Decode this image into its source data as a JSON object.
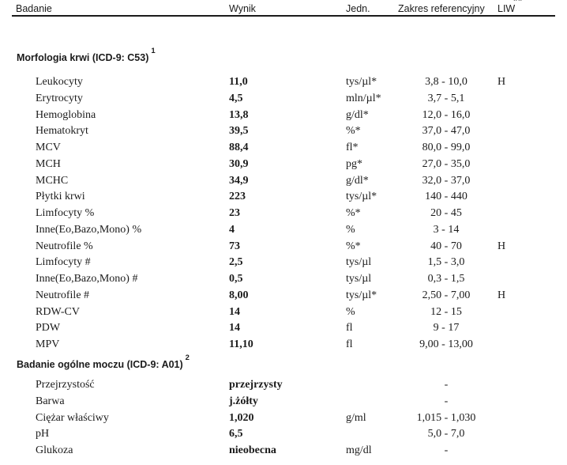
{
  "page": {
    "background": "#ffffff",
    "text_color": "#1b1b1b"
  },
  "header": {
    "columns": [
      {
        "label": "Badanie"
      },
      {
        "label": "Wynik"
      },
      {
        "label": "Jedn."
      },
      {
        "label": "Zakres referencyjny"
      },
      {
        "label": "LIW"
      }
    ],
    "footnote_marker": "**"
  },
  "sections": [
    {
      "title": "Morfologia krwi (ICD-9: C53)",
      "footnote_ref": "1",
      "rows": [
        {
          "name": "Leukocyty",
          "result": "11,0",
          "unit": "tys/µl*",
          "range": "3,8 - 10,0",
          "flag": "H"
        },
        {
          "name": "Erytrocyty",
          "result": "4,5",
          "unit": "mln/µl*",
          "range": "3,7 - 5,1",
          "flag": ""
        },
        {
          "name": "Hemoglobina",
          "result": "13,8",
          "unit": "g/dl*",
          "range": "12,0 - 16,0",
          "flag": ""
        },
        {
          "name": "Hematokryt",
          "result": "39,5",
          "unit": "%*",
          "range": "37,0 - 47,0",
          "flag": ""
        },
        {
          "name": "MCV",
          "result": "88,4",
          "unit": "fl*",
          "range": "80,0 - 99,0",
          "flag": ""
        },
        {
          "name": "MCH",
          "result": "30,9",
          "unit": "pg*",
          "range": "27,0 - 35,0",
          "flag": ""
        },
        {
          "name": "MCHC",
          "result": "34,9",
          "unit": "g/dl*",
          "range": "32,0 - 37,0",
          "flag": ""
        },
        {
          "name": "Płytki krwi",
          "result": "223",
          "unit": "tys/µl*",
          "range": "140 - 440",
          "flag": ""
        },
        {
          "name": "Limfocyty %",
          "result": "23",
          "unit": "%*",
          "range": "20 - 45",
          "flag": ""
        },
        {
          "name": "Inne(Eo,Bazo,Mono) %",
          "result": "4",
          "unit": "%",
          "range": "3 - 14",
          "flag": ""
        },
        {
          "name": "Neutrofile %",
          "result": "73",
          "unit": "%*",
          "range": "40 - 70",
          "flag": "H"
        },
        {
          "name": "Limfocyty #",
          "result": "2,5",
          "unit": "tys/µl",
          "range": "1,5 - 3,0",
          "flag": ""
        },
        {
          "name": "Inne(Eo,Bazo,Mono) #",
          "result": "0,5",
          "unit": "tys/µl",
          "range": "0,3 - 1,5",
          "flag": ""
        },
        {
          "name": "Neutrofile #",
          "result": "8,00",
          "unit": "tys/µl*",
          "range": "2,50 - 7,00",
          "flag": "H"
        },
        {
          "name": "RDW-CV",
          "result": "14",
          "unit": "%",
          "range": "12 - 15",
          "flag": ""
        },
        {
          "name": "PDW",
          "result": "14",
          "unit": "fl",
          "range": "9 - 17",
          "flag": ""
        },
        {
          "name": "MPV",
          "result": "11,10",
          "unit": "fl",
          "range": "9,00 - 13,00",
          "flag": ""
        }
      ]
    },
    {
      "title": "Badanie ogólne moczu (ICD-9: A01)",
      "footnote_ref": "2",
      "rows": [
        {
          "name": "Przejrzystość",
          "result": "przejrzysty",
          "unit": "",
          "range": "-",
          "flag": ""
        },
        {
          "name": "Barwa",
          "result": "j.żółty",
          "unit": "",
          "range": "-",
          "flag": ""
        },
        {
          "name": "Ciężar właściwy",
          "result": "1,020",
          "unit": "g/ml",
          "range": "1,015 - 1,030",
          "flag": ""
        },
        {
          "name": "pH",
          "result": "6,5",
          "unit": "",
          "range": "5,0 - 7,0",
          "flag": ""
        },
        {
          "name": "Glukoza",
          "result": "nieobecna",
          "unit": "mg/dl",
          "range": "-",
          "flag": ""
        }
      ]
    }
  ]
}
